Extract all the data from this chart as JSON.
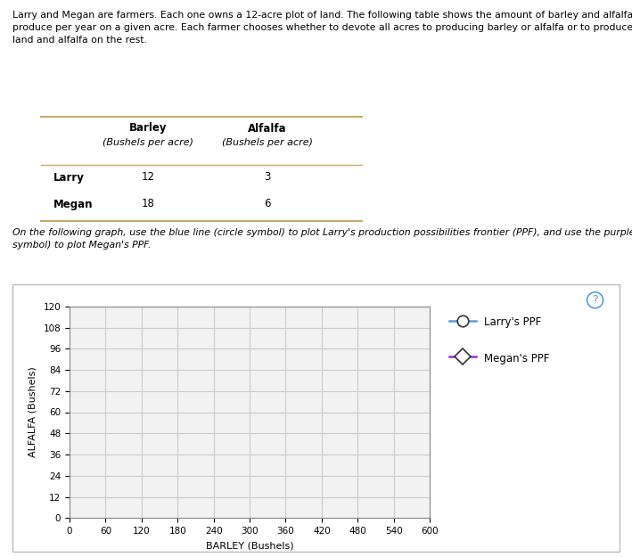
{
  "desc": "Larry and Megan are farmers. Each one owns a 12-acre plot of land. The following table shows the amount of barley and alfalfa each farmer can produce per year on a given acre. Each farmer chooses whether to devote all acres to producing barley or alfalfa or to produce barley on some of the land and alfalfa on the rest.",
  "instruction": "On the following graph, use the blue line (circle symbol) to plot Larry's production possibilities frontier (PPF), and use the purple line (diamond symbol) to plot Megan's PPF.",
  "table_col1_header": "Barley",
  "table_col1_sub": "(Bushels per acre)",
  "table_col2_header": "Alfalfa",
  "table_col2_sub": "(Bushels per acre)",
  "row1_name": "Larry",
  "row1_val1": "12",
  "row1_val2": "3",
  "row2_name": "Megan",
  "row2_val1": "18",
  "row2_val2": "6",
  "x_label": "BARLEY (Bushels)",
  "y_label": "ALFALFA (Bushels)",
  "x_ticks": [
    0,
    60,
    120,
    180,
    240,
    300,
    360,
    420,
    480,
    540,
    600
  ],
  "y_ticks": [
    0,
    12,
    24,
    36,
    48,
    60,
    72,
    84,
    96,
    108,
    120
  ],
  "xlim": [
    0,
    600
  ],
  "ylim": [
    0,
    120
  ],
  "larry_color": "#5b9bd5",
  "megan_color": "#9933cc",
  "legend_larry": "Larry's PPF",
  "legend_megan": "Megan's PPF",
  "grid_color": "#cccccc",
  "bg_color": "#ffffff",
  "plot_bg_color": "#f2f2f2",
  "tan_color": "#c8a96e"
}
